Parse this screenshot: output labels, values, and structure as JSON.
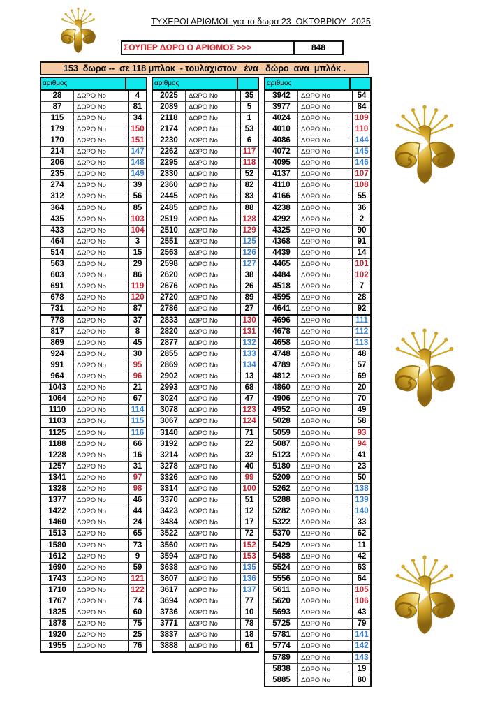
{
  "title": "ΤΥΧΕΡΟΙ ΑΡΙΘΜΟΙ  για το δωρα 23  ΟΚΤΩΒΡΙΟΥ  2025",
  "super_prize": {
    "label": "ΣΟΥΠΕΡ ΔΩΡΟ Ο ΑΡΙΘΜΟΣ >>>",
    "value": "848"
  },
  "banner": "153  δωρα --  σε 118 μπλοκ  - τουλαχιστον   ένα   δώρο  ανα  μπλόκ .",
  "column_header": "αριθμος",
  "row_label": "ΔΩΡΟ  No",
  "colors": {
    "red": "#c8202c",
    "blue": "#3a80d0",
    "header": "#10e8ee",
    "banner": "#f7caa6",
    "gold": "#d4a628"
  },
  "emblem_icon": "golden-spiral-emblem",
  "tables": [
    [
      [
        28,
        4,
        ""
      ],
      [
        87,
        81,
        ""
      ],
      [
        115,
        34,
        ""
      ],
      [
        179,
        150,
        "r"
      ],
      [
        170,
        151,
        "r"
      ],
      [
        214,
        147,
        "b"
      ],
      [
        206,
        148,
        "b"
      ],
      [
        235,
        149,
        "b"
      ],
      [
        274,
        39,
        ""
      ],
      [
        312,
        56,
        ""
      ],
      [
        364,
        85,
        ""
      ],
      [
        435,
        103,
        "r"
      ],
      [
        433,
        104,
        "r"
      ],
      [
        464,
        3,
        ""
      ],
      [
        514,
        15,
        ""
      ],
      [
        563,
        29,
        ""
      ],
      [
        603,
        86,
        ""
      ],
      [
        691,
        119,
        "r"
      ],
      [
        678,
        120,
        "r"
      ],
      [
        731,
        87,
        ""
      ],
      [
        778,
        37,
        ""
      ],
      [
        817,
        8,
        ""
      ],
      [
        869,
        45,
        ""
      ],
      [
        924,
        30,
        ""
      ],
      [
        991,
        95,
        "r"
      ],
      [
        964,
        96,
        "r"
      ],
      [
        1043,
        21,
        ""
      ],
      [
        1064,
        67,
        ""
      ],
      [
        1110,
        114,
        "b"
      ],
      [
        1103,
        115,
        "b"
      ],
      [
        1125,
        116,
        "b"
      ],
      [
        1188,
        66,
        ""
      ],
      [
        1228,
        16,
        ""
      ],
      [
        1257,
        31,
        ""
      ],
      [
        1341,
        97,
        "r"
      ],
      [
        1328,
        98,
        "r"
      ],
      [
        1377,
        46,
        ""
      ],
      [
        1422,
        44,
        ""
      ],
      [
        1460,
        24,
        ""
      ],
      [
        1513,
        65,
        ""
      ],
      [
        1580,
        73,
        ""
      ],
      [
        1612,
        9,
        ""
      ],
      [
        1690,
        59,
        ""
      ],
      [
        1743,
        121,
        "r"
      ],
      [
        1710,
        122,
        "r"
      ],
      [
        1767,
        74,
        ""
      ],
      [
        1825,
        60,
        ""
      ],
      [
        1878,
        75,
        ""
      ],
      [
        1920,
        25,
        ""
      ],
      [
        1955,
        76,
        ""
      ]
    ],
    [
      [
        2025,
        35,
        ""
      ],
      [
        2089,
        5,
        ""
      ],
      [
        2118,
        1,
        ""
      ],
      [
        2174,
        53,
        ""
      ],
      [
        2230,
        6,
        ""
      ],
      [
        2262,
        117,
        "r"
      ],
      [
        2295,
        118,
        "r"
      ],
      [
        2330,
        52,
        ""
      ],
      [
        2360,
        82,
        ""
      ],
      [
        2445,
        83,
        ""
      ],
      [
        2485,
        88,
        ""
      ],
      [
        2519,
        128,
        "r"
      ],
      [
        2510,
        129,
        "r"
      ],
      [
        2551,
        125,
        "b"
      ],
      [
        2563,
        126,
        "b"
      ],
      [
        2598,
        127,
        "b"
      ],
      [
        2620,
        38,
        ""
      ],
      [
        2676,
        26,
        ""
      ],
      [
        2720,
        89,
        ""
      ],
      [
        2786,
        27,
        ""
      ],
      [
        2833,
        130,
        "r"
      ],
      [
        2820,
        131,
        "r"
      ],
      [
        2877,
        132,
        "b"
      ],
      [
        2855,
        133,
        "b"
      ],
      [
        2869,
        134,
        "b"
      ],
      [
        2902,
        13,
        ""
      ],
      [
        2993,
        68,
        ""
      ],
      [
        3024,
        47,
        ""
      ],
      [
        3078,
        123,
        "r"
      ],
      [
        3067,
        124,
        "r"
      ],
      [
        3140,
        71,
        ""
      ],
      [
        3192,
        22,
        ""
      ],
      [
        3214,
        32,
        ""
      ],
      [
        3278,
        40,
        ""
      ],
      [
        3326,
        99,
        "r"
      ],
      [
        3314,
        100,
        "r"
      ],
      [
        3370,
        51,
        ""
      ],
      [
        3423,
        12,
        ""
      ],
      [
        3484,
        17,
        ""
      ],
      [
        3522,
        72,
        ""
      ],
      [
        3560,
        152,
        "r"
      ],
      [
        3594,
        153,
        "r"
      ],
      [
        3638,
        135,
        "b"
      ],
      [
        3607,
        136,
        "b"
      ],
      [
        3617,
        137,
        "b"
      ],
      [
        3694,
        77,
        ""
      ],
      [
        3736,
        10,
        ""
      ],
      [
        3771,
        78,
        ""
      ],
      [
        3837,
        18,
        ""
      ],
      [
        3888,
        61,
        ""
      ]
    ],
    [
      [
        3942,
        54,
        ""
      ],
      [
        3977,
        84,
        ""
      ],
      [
        4024,
        109,
        "r"
      ],
      [
        4010,
        110,
        "r"
      ],
      [
        4086,
        144,
        "b"
      ],
      [
        4072,
        145,
        "b"
      ],
      [
        4095,
        146,
        "b"
      ],
      [
        4137,
        107,
        "r"
      ],
      [
        4110,
        108,
        "r"
      ],
      [
        4166,
        55,
        ""
      ],
      [
        4238,
        36,
        ""
      ],
      [
        4292,
        2,
        ""
      ],
      [
        4325,
        90,
        ""
      ],
      [
        4368,
        91,
        ""
      ],
      [
        4439,
        14,
        ""
      ],
      [
        4465,
        101,
        "r"
      ],
      [
        4484,
        102,
        "r"
      ],
      [
        4518,
        7,
        ""
      ],
      [
        4595,
        28,
        ""
      ],
      [
        4641,
        92,
        ""
      ],
      [
        4696,
        111,
        "b"
      ],
      [
        4678,
        112,
        "b"
      ],
      [
        4658,
        113,
        "b"
      ],
      [
        4748,
        48,
        ""
      ],
      [
        4789,
        57,
        ""
      ],
      [
        4812,
        69,
        ""
      ],
      [
        4860,
        20,
        ""
      ],
      [
        4906,
        70,
        ""
      ],
      [
        4952,
        49,
        ""
      ],
      [
        5028,
        58,
        ""
      ],
      [
        5059,
        93,
        "r"
      ],
      [
        5087,
        94,
        "r"
      ],
      [
        5123,
        41,
        ""
      ],
      [
        5180,
        23,
        ""
      ],
      [
        5209,
        50,
        ""
      ],
      [
        5262,
        138,
        "b"
      ],
      [
        5288,
        139,
        "b"
      ],
      [
        5282,
        140,
        "b"
      ],
      [
        5322,
        33,
        ""
      ],
      [
        5370,
        62,
        ""
      ],
      [
        5429,
        11,
        ""
      ],
      [
        5488,
        42,
        ""
      ],
      [
        5524,
        63,
        ""
      ],
      [
        5556,
        64,
        ""
      ],
      [
        5611,
        105,
        "r"
      ],
      [
        5620,
        106,
        "r"
      ],
      [
        5693,
        43,
        ""
      ],
      [
        5725,
        79,
        ""
      ],
      [
        5781,
        141,
        "b"
      ],
      [
        5774,
        142,
        "b"
      ],
      [
        5789,
        143,
        "b"
      ],
      [
        5838,
        19,
        ""
      ],
      [
        5885,
        80,
        ""
      ]
    ]
  ]
}
